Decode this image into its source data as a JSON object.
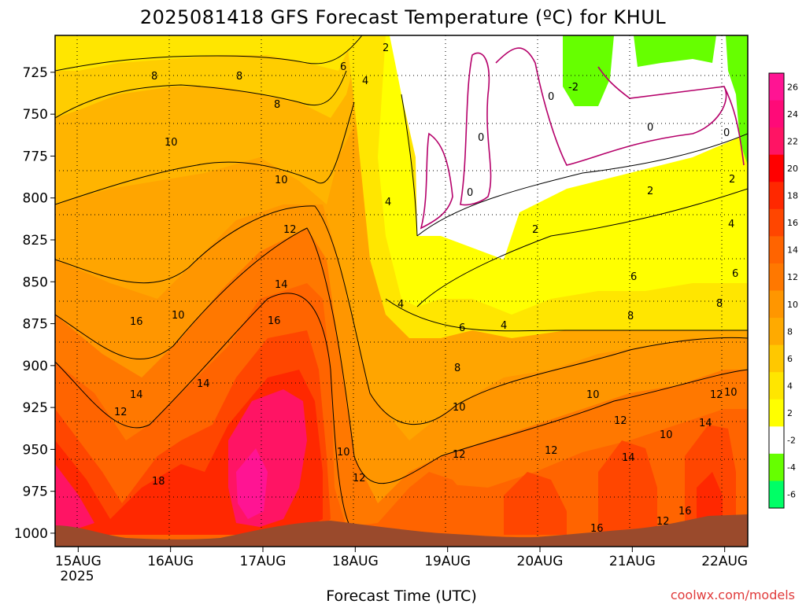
{
  "title": "2025081418 GFS Forecast Temperature (ºC) for KHUL",
  "credit": "coolwx.com/models",
  "chart_data": {
    "type": "heatmap",
    "title": "2025081418 GFS Forecast Temperature (ºC) for KHUL",
    "xlabel": "Forecast Time (UTC)",
    "ylabel": "",
    "x_ticks": [
      "15AUG",
      "16AUG",
      "17AUG",
      "18AUG",
      "19AUG",
      "20AUG",
      "21AUG",
      "22AUG"
    ],
    "x_year": "2025",
    "x_range_days": [
      14.75,
      22.25
    ],
    "y_ticks": [
      725,
      750,
      775,
      800,
      825,
      850,
      875,
      900,
      925,
      950,
      975,
      1000
    ],
    "y_range_hpa": [
      703,
      1008
    ],
    "y_reversed": true,
    "colorbar_ticks": [
      26,
      24,
      22,
      20,
      18,
      16,
      14,
      12,
      10,
      8,
      6,
      4,
      2,
      -2,
      -4,
      -6
    ],
    "colorbar_colors": [
      "#ff1493",
      "#ff0a78",
      "#ff1464",
      "#ff0000",
      "#ff2800",
      "#ff4600",
      "#ff6400",
      "#ff7800",
      "#ff9600",
      "#ffaa00",
      "#ffc800",
      "#ffe600",
      "#ffff00",
      "#ffffff",
      "#66ff00",
      "#00ff66"
    ],
    "contour_labels": [
      "8",
      "8",
      "6",
      "4",
      "2",
      "0",
      "0",
      "0",
      "-2",
      "0",
      "0",
      "2",
      "2",
      "2",
      "10",
      "8",
      "10",
      "12",
      "14",
      "16",
      "4",
      "4",
      "4",
      "6",
      "8",
      "10",
      "12",
      "14",
      "16",
      "10",
      "12",
      "14",
      "18",
      "10",
      "10",
      "12",
      "6",
      "8",
      "10",
      "12",
      "12",
      "12",
      "14",
      "16",
      "12",
      "10",
      "2",
      "4",
      "6",
      "8",
      "10",
      "12",
      "14",
      "16",
      "0",
      "2",
      "4",
      "6",
      "8",
      "10",
      "14",
      "16"
    ],
    "grid": true,
    "terrain": "surface (brown) at bottom"
  }
}
